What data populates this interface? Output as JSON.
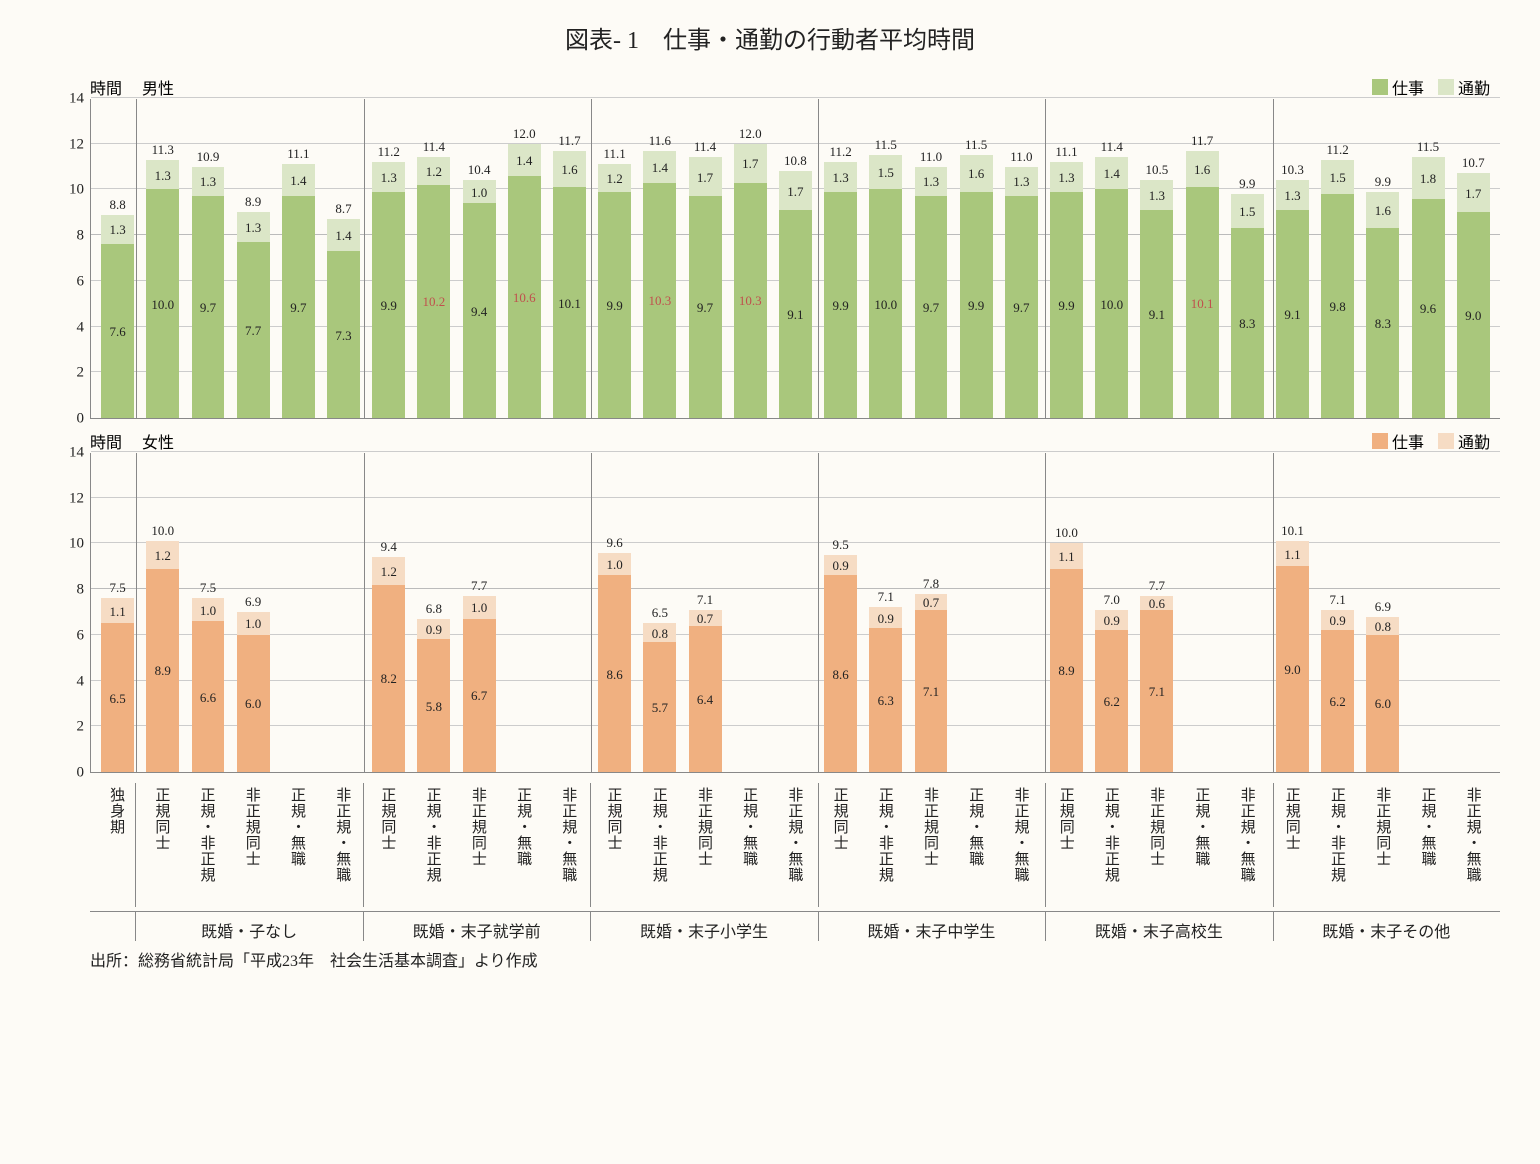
{
  "title": "図表- 1　仕事・通勤の行動者平均時間",
  "source": "出所：総務省統計局「平成23年　社会生活基本調査」より作成",
  "colors": {
    "male_work": "#a9c77c",
    "male_commute": "#dbe6c7",
    "female_work": "#f0b080",
    "female_commute": "#f6dcc4",
    "background": "#fdfbf6",
    "grid": "#cccccc",
    "axis": "#888888",
    "text": "#222222",
    "highlight": "#c0504d"
  },
  "y": {
    "max": 14,
    "step": 2,
    "label": "時間",
    "refline": 8
  },
  "groups": [
    {
      "label": "",
      "bars": [
        "独身期"
      ]
    },
    {
      "label": "既婚・子なし",
      "bars": [
        "正規同士",
        "正規・非正規",
        "非正規同士",
        "正規・無職",
        "非正規・無職"
      ]
    },
    {
      "label": "既婚・末子就学前",
      "bars": [
        "正規同士",
        "正規・非正規",
        "非正規同士",
        "正規・無職",
        "非正規・無職"
      ]
    },
    {
      "label": "既婚・末子小学生",
      "bars": [
        "正規同士",
        "正規・非正規",
        "非正規同士",
        "正規・無職",
        "非正規・無職"
      ]
    },
    {
      "label": "既婚・末子中学生",
      "bars": [
        "正規同士",
        "正規・非正規",
        "非正規同士",
        "正規・無職",
        "非正規・無職"
      ]
    },
    {
      "label": "既婚・末子高校生",
      "bars": [
        "正規同士",
        "正規・非正規",
        "非正規同士",
        "正規・無職",
        "非正規・無職"
      ]
    },
    {
      "label": "既婚・末子その他",
      "bars": [
        "正規同士",
        "正規・非正規",
        "非正規同士",
        "正規・無職",
        "非正規・無職"
      ]
    }
  ],
  "legend": {
    "work": "仕事",
    "commute": "通勤"
  },
  "charts": [
    {
      "id": "male",
      "label": "男性",
      "work_color": "#a9c77c",
      "commute_color": "#dbe6c7",
      "data": [
        {
          "work": 7.6,
          "commute": 1.3,
          "total": 8.8
        },
        {
          "work": 10.0,
          "commute": 1.3,
          "total": 11.3
        },
        {
          "work": 9.7,
          "commute": 1.3,
          "total": 10.9
        },
        {
          "work": 7.7,
          "commute": 1.3,
          "total": 8.9
        },
        {
          "work": 9.7,
          "commute": 1.4,
          "total": 11.1
        },
        {
          "work": 7.3,
          "commute": 1.4,
          "total": 8.7
        },
        {
          "work": 9.9,
          "commute": 1.3,
          "total": 11.2
        },
        {
          "work": 10.2,
          "commute": 1.2,
          "total": 11.4,
          "hl": true
        },
        {
          "work": 9.4,
          "commute": 1.0,
          "total": 10.4
        },
        {
          "work": 10.6,
          "commute": 1.4,
          "total": 12.0,
          "hl": true
        },
        {
          "work": 10.1,
          "commute": 1.6,
          "total": 11.7
        },
        {
          "work": 9.9,
          "commute": 1.2,
          "total": 11.1
        },
        {
          "work": 10.3,
          "commute": 1.4,
          "total": 11.6,
          "hl": true
        },
        {
          "work": 9.7,
          "commute": 1.7,
          "total": 11.4
        },
        {
          "work": 10.3,
          "commute": 1.7,
          "total": 12.0,
          "hl": true
        },
        {
          "work": 9.1,
          "commute": 1.7,
          "total": 10.8
        },
        {
          "work": 9.9,
          "commute": 1.3,
          "total": 11.2
        },
        {
          "work": 10.0,
          "commute": 1.5,
          "total": 11.5
        },
        {
          "work": 9.7,
          "commute": 1.3,
          "total": 11.0
        },
        {
          "work": 9.9,
          "commute": 1.6,
          "total": 11.5
        },
        {
          "work": 9.7,
          "commute": 1.3,
          "total": 11.0
        },
        {
          "work": 9.9,
          "commute": 1.3,
          "total": 11.1
        },
        {
          "work": 10.0,
          "commute": 1.4,
          "total": 11.4
        },
        {
          "work": 9.1,
          "commute": 1.3,
          "total": 10.5
        },
        {
          "work": 10.1,
          "commute": 1.6,
          "total": 11.7,
          "hl": true
        },
        {
          "work": 8.3,
          "commute": 1.5,
          "total": 9.9
        },
        {
          "work": 9.1,
          "commute": 1.3,
          "total": 10.3
        },
        {
          "work": 9.8,
          "commute": 1.5,
          "total": 11.2
        },
        {
          "work": 8.3,
          "commute": 1.6,
          "total": 9.9
        },
        {
          "work": 9.6,
          "commute": 1.8,
          "total": 11.5
        },
        {
          "work": 9.0,
          "commute": 1.7,
          "total": 10.7
        }
      ]
    },
    {
      "id": "female",
      "label": "女性",
      "work_color": "#f0b080",
      "commute_color": "#f6dcc4",
      "data": [
        {
          "work": 6.5,
          "commute": 1.1,
          "total": 7.5
        },
        {
          "work": 8.9,
          "commute": 1.2,
          "total": 10.0
        },
        {
          "work": 6.6,
          "commute": 1.0,
          "total": 7.5
        },
        {
          "work": 6.0,
          "commute": 1.0,
          "total": 6.9
        },
        null,
        null,
        {
          "work": 8.2,
          "commute": 1.2,
          "total": 9.4
        },
        {
          "work": 5.8,
          "commute": 0.9,
          "total": 6.8
        },
        {
          "work": 6.7,
          "commute": 1.0,
          "total": 7.7
        },
        null,
        null,
        {
          "work": 8.6,
          "commute": 1.0,
          "total": 9.6
        },
        {
          "work": 5.7,
          "commute": 0.8,
          "total": 6.5
        },
        {
          "work": 6.4,
          "commute": 0.7,
          "total": 7.1
        },
        null,
        null,
        {
          "work": 8.6,
          "commute": 0.9,
          "total": 9.5
        },
        {
          "work": 6.3,
          "commute": 0.9,
          "total": 7.1
        },
        {
          "work": 7.1,
          "commute": 0.7,
          "total": 7.8
        },
        null,
        null,
        {
          "work": 8.9,
          "commute": 1.1,
          "total": 10.0
        },
        {
          "work": 6.2,
          "commute": 0.9,
          "total": 7.0
        },
        {
          "work": 7.1,
          "commute": 0.6,
          "total": 7.7
        },
        null,
        null,
        {
          "work": 9.0,
          "commute": 1.1,
          "total": 10.1
        },
        {
          "work": 6.2,
          "commute": 0.9,
          "total": 7.1
        },
        {
          "work": 6.0,
          "commute": 0.8,
          "total": 6.9
        },
        null,
        null
      ]
    }
  ]
}
